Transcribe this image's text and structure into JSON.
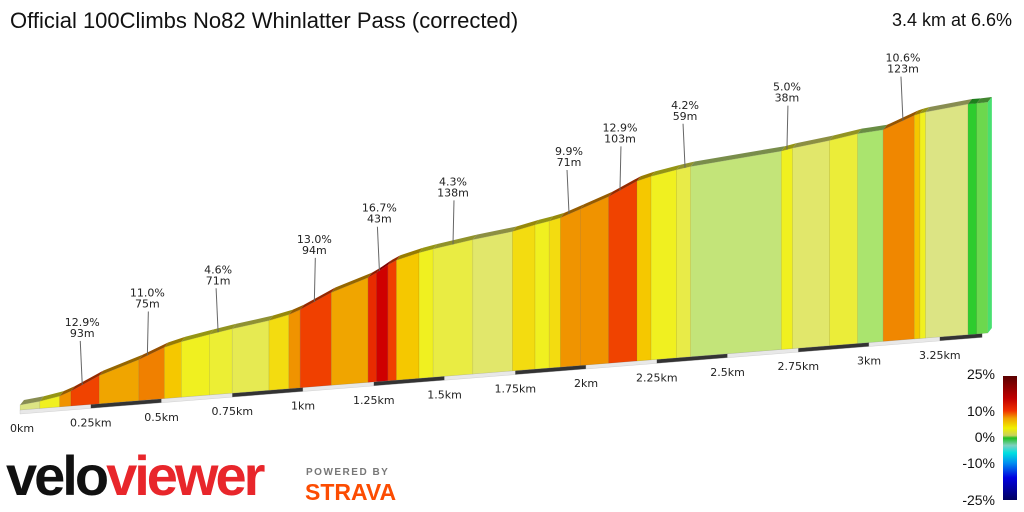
{
  "header": {
    "title": "Official 100Climbs No82 Whinlatter Pass (corrected)",
    "summary": "3.4 km at 6.6%"
  },
  "legend": {
    "labels": [
      "25%",
      "10%",
      "0%",
      "-10%",
      "-25%"
    ]
  },
  "branding": {
    "logo_velo": "velo",
    "logo_viewer": "viewer",
    "powered_by": "POWERED BY",
    "strava": "STRAVA"
  },
  "chart_data": {
    "type": "area",
    "title": "Official 100Climbs No82 Whinlatter Pass (corrected)",
    "x_unit": "km",
    "xlim": [
      0,
      3.4
    ],
    "x_tick_labels": [
      "0km",
      "0.25km",
      "0.5km",
      "0.75km",
      "1km",
      "1.25km",
      "1.5km",
      "1.75km",
      "2km",
      "2.25km",
      "2.5km",
      "2.75km",
      "3km",
      "3.25km"
    ],
    "x_ticks": [
      0,
      0.25,
      0.5,
      0.75,
      1,
      1.25,
      1.5,
      1.75,
      2,
      2.25,
      2.5,
      2.75,
      3,
      3.25
    ],
    "gradient_scale": {
      "min": -25,
      "max": 25
    },
    "segments": [
      {
        "from": 0.0,
        "to": 0.07,
        "gradient": 3
      },
      {
        "from": 0.07,
        "to": 0.14,
        "gradient": 5
      },
      {
        "from": 0.14,
        "to": 0.18,
        "gradient": 10
      },
      {
        "from": 0.18,
        "to": 0.28,
        "gradient": 12.9
      },
      {
        "from": 0.28,
        "to": 0.42,
        "gradient": 9
      },
      {
        "from": 0.42,
        "to": 0.51,
        "gradient": 11
      },
      {
        "from": 0.51,
        "to": 0.57,
        "gradient": 7
      },
      {
        "from": 0.57,
        "to": 0.67,
        "gradient": 5
      },
      {
        "from": 0.67,
        "to": 0.75,
        "gradient": 4.6
      },
      {
        "from": 0.75,
        "to": 0.88,
        "gradient": 4
      },
      {
        "from": 0.88,
        "to": 0.95,
        "gradient": 6
      },
      {
        "from": 0.95,
        "to": 0.99,
        "gradient": 10
      },
      {
        "from": 0.99,
        "to": 1.1,
        "gradient": 13
      },
      {
        "from": 1.1,
        "to": 1.23,
        "gradient": 9
      },
      {
        "from": 1.23,
        "to": 1.26,
        "gradient": 14
      },
      {
        "from": 1.26,
        "to": 1.3,
        "gradient": 16.7
      },
      {
        "from": 1.3,
        "to": 1.33,
        "gradient": 13
      },
      {
        "from": 1.33,
        "to": 1.41,
        "gradient": 7
      },
      {
        "from": 1.41,
        "to": 1.46,
        "gradient": 5
      },
      {
        "from": 1.46,
        "to": 1.6,
        "gradient": 4.3
      },
      {
        "from": 1.6,
        "to": 1.74,
        "gradient": 3.5
      },
      {
        "from": 1.74,
        "to": 1.82,
        "gradient": 6
      },
      {
        "from": 1.82,
        "to": 1.87,
        "gradient": 5
      },
      {
        "from": 1.87,
        "to": 1.91,
        "gradient": 6
      },
      {
        "from": 1.91,
        "to": 1.98,
        "gradient": 9.9
      },
      {
        "from": 1.98,
        "to": 2.08,
        "gradient": 10
      },
      {
        "from": 2.08,
        "to": 2.18,
        "gradient": 12.9
      },
      {
        "from": 2.18,
        "to": 2.23,
        "gradient": 7
      },
      {
        "from": 2.23,
        "to": 2.32,
        "gradient": 5
      },
      {
        "from": 2.32,
        "to": 2.37,
        "gradient": 4.2
      },
      {
        "from": 2.37,
        "to": 2.69,
        "gradient": 2.5
      },
      {
        "from": 2.69,
        "to": 2.73,
        "gradient": 5.0
      },
      {
        "from": 2.73,
        "to": 2.86,
        "gradient": 3.5
      },
      {
        "from": 2.86,
        "to": 2.96,
        "gradient": 4.5
      },
      {
        "from": 2.96,
        "to": 3.05,
        "gradient": 2
      },
      {
        "from": 3.05,
        "to": 3.16,
        "gradient": 10.6
      },
      {
        "from": 3.16,
        "to": 3.18,
        "gradient": 7
      },
      {
        "from": 3.18,
        "to": 3.2,
        "gradient": 5
      },
      {
        "from": 3.2,
        "to": 3.35,
        "gradient": 3
      },
      {
        "from": 3.35,
        "to": 3.38,
        "gradient": 0
      },
      {
        "from": 3.38,
        "to": 3.42,
        "gradient": 1
      }
    ],
    "annotations": [
      {
        "km": 0.22,
        "gradient": "12.9%",
        "length": "93m"
      },
      {
        "km": 0.45,
        "gradient": "11.0%",
        "length": "75m"
      },
      {
        "km": 0.7,
        "gradient": "4.6%",
        "length": "71m"
      },
      {
        "km": 1.04,
        "gradient": "13.0%",
        "length": "94m"
      },
      {
        "km": 1.27,
        "gradient": "16.7%",
        "length": "43m"
      },
      {
        "km": 1.53,
        "gradient": "4.3%",
        "length": "138m"
      },
      {
        "km": 1.94,
        "gradient": "9.9%",
        "length": "71m"
      },
      {
        "km": 2.12,
        "gradient": "12.9%",
        "length": "103m"
      },
      {
        "km": 2.35,
        "gradient": "4.2%",
        "length": "59m"
      },
      {
        "km": 2.71,
        "gradient": "5.0%",
        "length": "38m"
      },
      {
        "km": 3.12,
        "gradient": "10.6%",
        "length": "123m"
      }
    ]
  }
}
